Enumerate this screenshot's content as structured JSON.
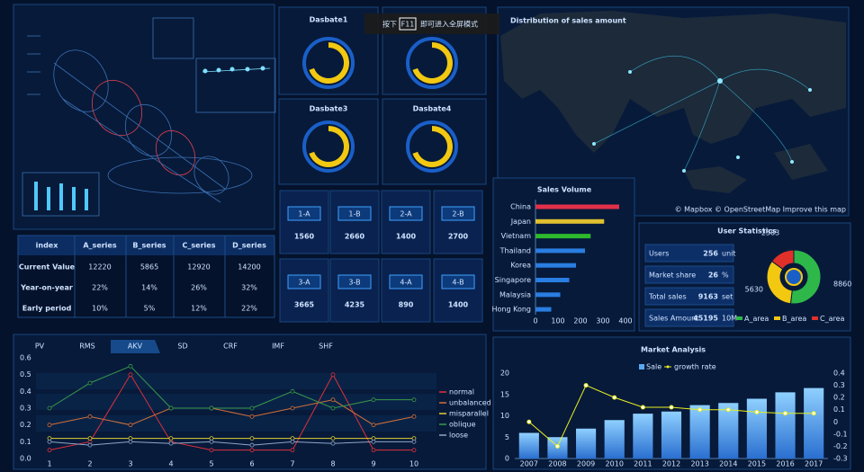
{
  "fullscreen_hint": {
    "prefix": "按下",
    "key": "F11",
    "suffix": "即可进入全屏模式"
  },
  "table": {
    "header": [
      "index",
      "A_series",
      "B_series",
      "C_series",
      "D_series"
    ],
    "rows": [
      [
        "Current Value",
        "12220",
        "5865",
        "12920",
        "14200"
      ],
      [
        "Year-on-year",
        "22%",
        "14%",
        "26%",
        "32%"
      ],
      [
        "Early period",
        "10%",
        "5%",
        "12%",
        "22%"
      ]
    ]
  },
  "gauges": [
    "Dasbate1",
    "Dasbate3",
    "Dasbate4"
  ],
  "tiles": [
    {
      "label": "1-A",
      "value": 1560
    },
    {
      "label": "1-B",
      "value": 2660
    },
    {
      "label": "2-A",
      "value": 1400
    },
    {
      "label": "2-B",
      "value": 2700
    },
    {
      "label": "3-A",
      "value": 3665
    },
    {
      "label": "3-B",
      "value": 4235
    },
    {
      "label": "4-A",
      "value": 890
    },
    {
      "label": "4-B",
      "value": 1400
    }
  ],
  "map": {
    "title": "Distribution of sales amount",
    "attribution": "© Mapbox © OpenStreetMap Improve this map"
  },
  "user_stats": {
    "title": "User Statistics",
    "rows": [
      {
        "label": "Users",
        "value": 256,
        "unit": "unit"
      },
      {
        "label": "Market share",
        "value": 26,
        "unit": "%"
      },
      {
        "label": "Total sales",
        "value": 9163,
        "unit": "set"
      },
      {
        "label": "Sales Amount",
        "value": 45195,
        "unit": "10M"
      }
    ]
  },
  "tabs": [
    "PV",
    "RMS",
    "AKV",
    "SD",
    "CRF",
    "IMF",
    "SHF"
  ],
  "active_tab": 2,
  "chart_data": [
    {
      "type": "bar",
      "orientation": "horizontal",
      "title": "Sales Volume",
      "categories": [
        "China",
        "Japan",
        "Vietnam",
        "Thailand",
        "Korea",
        "Singapore",
        "Malaysia",
        "Hong Kong"
      ],
      "values": [
        372,
        305,
        245,
        220,
        180,
        150,
        110,
        70
      ],
      "colors": [
        "#e0304a",
        "#e0c030",
        "#2eb82e",
        "#2a7de1",
        "#2a7de1",
        "#2a7de1",
        "#2a7de1",
        "#2a7de1"
      ],
      "xlim": [
        0,
        400
      ],
      "xticks": [
        0,
        100,
        200,
        300,
        400
      ]
    },
    {
      "type": "pie",
      "categories": [
        "A_area",
        "B_area",
        "C_area"
      ],
      "values": [
        8860,
        5630,
        2583
      ],
      "colors": [
        "#2eb84a",
        "#f2c811",
        "#e0302a"
      ]
    },
    {
      "type": "line",
      "categories": [
        "1",
        "2",
        "3",
        "4",
        "5",
        "6",
        "7",
        "8",
        "9",
        "10"
      ],
      "series": [
        {
          "name": "normal",
          "color": "#e0303a",
          "values": [
            0.05,
            0.1,
            0.5,
            0.1,
            0.05,
            0.05,
            0.05,
            0.5,
            0.05,
            0.05
          ]
        },
        {
          "name": "unbalanced",
          "color": "#d0703a",
          "values": [
            0.2,
            0.25,
            0.2,
            0.3,
            0.3,
            0.25,
            0.3,
            0.35,
            0.2,
            0.25
          ]
        },
        {
          "name": "misparallel",
          "color": "#e0d030",
          "values": [
            0.12,
            0.12,
            0.12,
            0.12,
            0.12,
            0.12,
            0.12,
            0.12,
            0.12,
            0.12
          ]
        },
        {
          "name": "oblique",
          "color": "#3a9a4a",
          "values": [
            0.3,
            0.45,
            0.55,
            0.3,
            0.3,
            0.3,
            0.4,
            0.3,
            0.35,
            0.35
          ]
        },
        {
          "name": "loose",
          "color": "#8fa6c8",
          "values": [
            0.1,
            0.08,
            0.1,
            0.09,
            0.1,
            0.08,
            0.1,
            0.09,
            0.1,
            0.1
          ]
        }
      ],
      "ylim": [
        0,
        0.6
      ],
      "yticks": [
        {
          "value": 0,
          "label": "0.0"
        },
        0.1,
        0.2,
        0.3,
        0.4,
        0.5,
        0.6
      ]
    },
    {
      "type": "bar",
      "title": "Market Analysis",
      "categories": [
        "2007",
        "2008",
        "2009",
        "2010",
        "2011",
        "2012",
        "2013",
        "2014",
        "2015",
        "2016",
        "2017"
      ],
      "series": [
        {
          "name": "Sale",
          "type": "bar",
          "color": "#5aa8f0",
          "values": [
            6,
            5,
            7,
            9,
            10.5,
            11,
            12.5,
            13,
            14,
            15.5,
            16.5
          ]
        },
        {
          "name": "growth rate",
          "type": "line",
          "axis": "y2",
          "color": "#e8f020",
          "values": [
            0,
            -0.2,
            0.3,
            0.2,
            0.12,
            0.12,
            0.1,
            0.1,
            0.08,
            0.07,
            0.07
          ]
        }
      ],
      "ylim": [
        0,
        20
      ],
      "yticks": [
        0,
        5,
        10,
        15,
        20
      ],
      "y2lim": [
        -0.3,
        0.4
      ],
      "y2ticks": [
        -0.3,
        -0.2,
        -0.1,
        0,
        0.1,
        0.2,
        0.3,
        0.4
      ]
    }
  ]
}
